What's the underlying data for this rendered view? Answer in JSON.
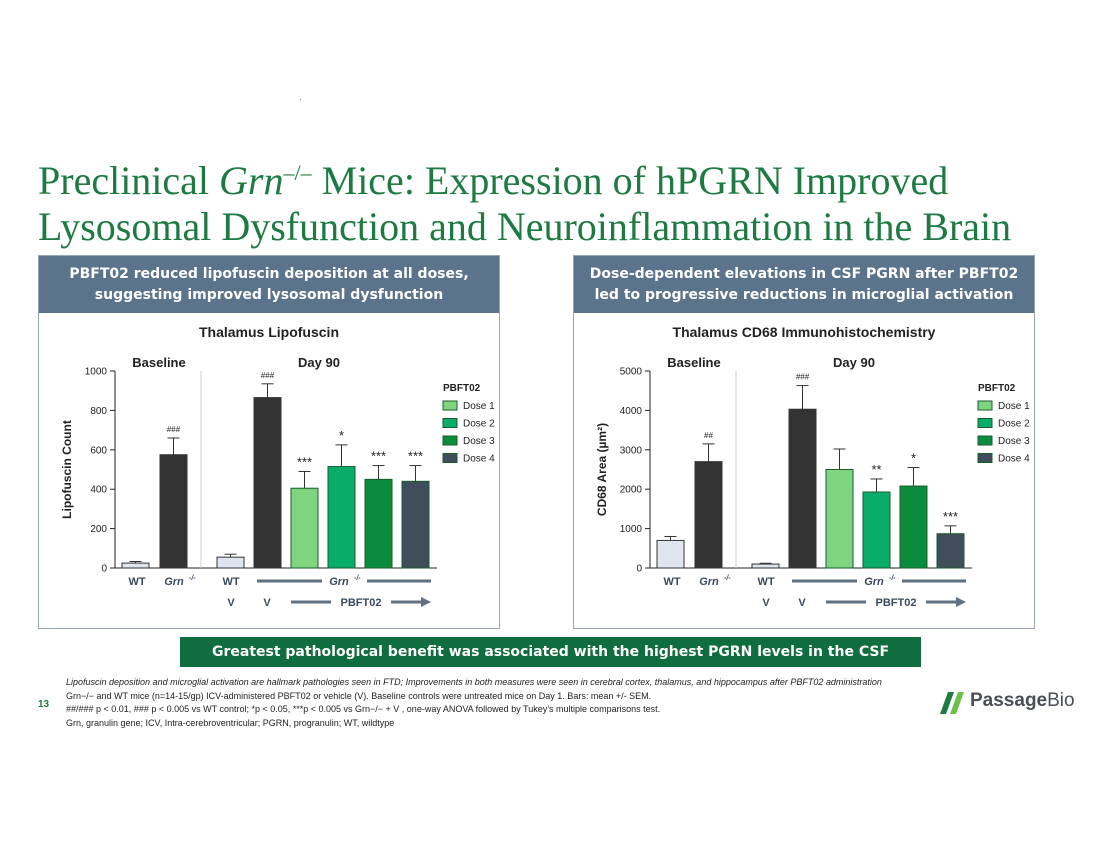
{
  "page": {
    "title_line1_a": "Preclinical ",
    "title_line1_italic": "Grn",
    "title_line1_sup": "–/–",
    "title_line1_b": " Mice: Expression of  hPGRN Improved",
    "title_line2": "Lysosomal Dysfunction and Neuroinflammation in the Brain",
    "page_number": "13",
    "banner": "Greatest pathological benefit was associated with the highest PGRN levels in the CSF",
    "logo": {
      "bold": "Passage",
      "light": "Bio",
      "color": "#1e7a43"
    }
  },
  "footnotes": [
    "Lipofuscin deposition and microglial activation are hallmark pathologies seen in FTD; Improvements in both measures were seen in cerebral cortex, thalamus, and hippocampus after PBFT02 administration",
    "Grn−/− and WT mice (n=14-15/gp) ICV-administered PBFT02 or vehicle (V). Baseline controls were untreated mice on Day 1.  Bars: mean +/- SEM.",
    "##/### p < 0.01, ### p < 0.005 vs WT control;  *p < 0.05, ***p < 0.005 vs Grn−/− + V , one-way ANOVA followed by Tukey’s multiple comparisons test.",
    "Grn, granulin gene; ICV, Intra-cerebroventricular; PGRN, progranulin; WT, wildtype"
  ],
  "panels": [
    {
      "header": "PBFT02 reduced lipofuscin deposition at all doses, suggesting improved lysosomal dysfunction"
    },
    {
      "header": "Dose-dependent elevations in CSF PGRN after PBFT02 led to progressive reductions in microglial activation"
    }
  ],
  "chart_data": [
    {
      "type": "bar",
      "title": "Thalamus Lipofuscin",
      "ylabel": "Lipofuscin Count",
      "ylim": [
        0,
        1000
      ],
      "yticks": [
        0,
        200,
        400,
        600,
        800,
        1000
      ],
      "groups": [
        "Baseline",
        "Day 90"
      ],
      "categories": [
        "WT",
        "Grn-/-",
        "WT V",
        "Grn-/- V",
        "Grn-/- Dose 1",
        "Grn-/- Dose 2",
        "Grn-/- Dose 3",
        "Grn-/- Dose 4"
      ],
      "values": [
        25,
        575,
        55,
        865,
        405,
        515,
        450,
        440
      ],
      "errors": [
        8,
        85,
        15,
        70,
        85,
        110,
        70,
        80
      ],
      "annotations": [
        "",
        "###",
        "",
        "###",
        "***",
        "*",
        "***",
        "***"
      ],
      "colors": [
        "#dfe5ee",
        "#333333",
        "#dfe5ee",
        "#333333",
        "#7fd47f",
        "#08ad6a",
        "#0b8b3c",
        "#3f4e5a"
      ],
      "legend_title": "PBFT02",
      "legend": [
        "Dose 1",
        "Dose 2",
        "Dose 3",
        "Dose 4"
      ],
      "x_labels": {
        "wt": "WT",
        "grn": "Grn",
        "sup": "-/-",
        "vehicle": "V",
        "treatment": "PBFT02"
      }
    },
    {
      "type": "bar",
      "title": "Thalamus CD68 Immunohistochemistry",
      "ylabel": "CD68 Area (µm²)",
      "ylim": [
        0,
        5000
      ],
      "yticks": [
        0,
        1000,
        2000,
        3000,
        4000,
        5000
      ],
      "groups": [
        "Baseline",
        "Day 90"
      ],
      "categories": [
        "WT",
        "Grn-/-",
        "WT V",
        "Grn-/- V",
        "Grn-/- Dose 1",
        "Grn-/- Dose 2",
        "Grn-/- Dose 3",
        "Grn-/- Dose 4"
      ],
      "values": [
        700,
        2700,
        100,
        4030,
        2500,
        1930,
        2080,
        870
      ],
      "errors": [
        100,
        450,
        20,
        600,
        520,
        330,
        470,
        200
      ],
      "annotations": [
        "",
        "##",
        "",
        "###",
        "",
        "**",
        "*",
        "***"
      ],
      "colors": [
        "#dfe5ee",
        "#333333",
        "#dfe5ee",
        "#333333",
        "#7fd47f",
        "#08ad6a",
        "#0b8b3c",
        "#3f4e5a"
      ],
      "legend_title": "PBFT02",
      "legend": [
        "Dose 1",
        "Dose 2",
        "Dose 3",
        "Dose 4"
      ],
      "x_labels": {
        "wt": "WT",
        "grn": "Grn",
        "sup": "-/-",
        "vehicle": "V",
        "treatment": "PBFT02"
      }
    }
  ]
}
